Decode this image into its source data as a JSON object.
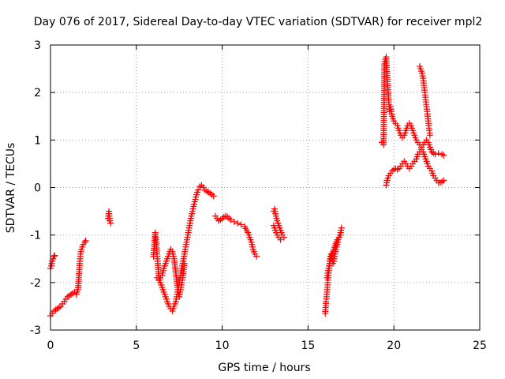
{
  "chart_data": {
    "type": "scatter",
    "title": "Day 076 of 2017, Sidereal Day-to-day VTEC variation (SDTVAR) for receiver mpl2",
    "xlabel": "GPS time / hours",
    "ylabel": "SDTVAR / TECUs",
    "xlim": [
      0,
      25
    ],
    "ylim": [
      -3,
      3
    ],
    "xticks": [
      0,
      5,
      10,
      15,
      20,
      25
    ],
    "yticks": [
      -3,
      -2,
      -1,
      0,
      1,
      2,
      3
    ],
    "xtick_labels": [
      "0",
      "5",
      "10",
      "15",
      "20",
      "25"
    ],
    "ytick_labels": [
      "-3",
      "-2",
      "-1",
      "0",
      "1",
      "2",
      "3"
    ],
    "grid": true,
    "marker": "+",
    "color": "#ff0000",
    "series": [
      {
        "name": "SDTVAR",
        "segments": [
          [
            [
              0.0,
              -2.7
            ],
            [
              0.1,
              -2.65
            ],
            [
              0.2,
              -2.6
            ],
            [
              0.4,
              -2.55
            ],
            [
              0.6,
              -2.5
            ],
            [
              0.8,
              -2.4
            ],
            [
              1.0,
              -2.3
            ],
            [
              1.2,
              -2.25
            ],
            [
              1.4,
              -2.2
            ],
            [
              1.5,
              -2.25
            ],
            [
              1.6,
              -2.15
            ],
            [
              1.65,
              -1.9
            ],
            [
              1.7,
              -1.6
            ],
            [
              1.75,
              -1.4
            ],
            [
              1.8,
              -1.3
            ],
            [
              1.9,
              -1.2
            ],
            [
              2.0,
              -1.15
            ],
            [
              2.05,
              -1.12
            ]
          ],
          [
            [
              0.0,
              -1.7
            ],
            [
              0.05,
              -1.65
            ],
            [
              0.1,
              -1.55
            ],
            [
              0.15,
              -1.5
            ],
            [
              0.2,
              -1.45
            ],
            [
              0.25,
              -1.43
            ]
          ],
          [
            [
              3.35,
              -0.65
            ],
            [
              3.4,
              -0.5
            ],
            [
              3.45,
              -0.7
            ],
            [
              3.5,
              -0.75
            ]
          ],
          [
            [
              6.0,
              -1.45
            ],
            [
              6.05,
              -1.2
            ],
            [
              6.1,
              -0.95
            ],
            [
              6.15,
              -1.1
            ],
            [
              6.2,
              -1.4
            ],
            [
              6.25,
              -1.6
            ],
            [
              6.3,
              -1.85
            ],
            [
              6.4,
              -2.0
            ],
            [
              6.5,
              -2.1
            ],
            [
              6.6,
              -2.2
            ],
            [
              6.7,
              -2.3
            ],
            [
              6.8,
              -2.4
            ],
            [
              6.9,
              -2.5
            ],
            [
              7.0,
              -2.55
            ],
            [
              7.1,
              -2.6
            ],
            [
              7.2,
              -2.5
            ],
            [
              7.3,
              -2.4
            ],
            [
              7.4,
              -2.2
            ],
            [
              7.5,
              -2.0
            ],
            [
              7.6,
              -1.8
            ],
            [
              7.7,
              -1.6
            ],
            [
              7.8,
              -1.4
            ],
            [
              7.9,
              -1.2
            ],
            [
              8.0,
              -1.0
            ],
            [
              8.1,
              -0.8
            ],
            [
              8.2,
              -0.6
            ],
            [
              8.3,
              -0.45
            ],
            [
              8.4,
              -0.3
            ],
            [
              8.5,
              -0.15
            ],
            [
              8.6,
              -0.05
            ],
            [
              8.7,
              0.02
            ],
            [
              8.8,
              0.05
            ],
            [
              8.9,
              0.0
            ],
            [
              9.0,
              -0.05
            ],
            [
              9.1,
              -0.08
            ],
            [
              9.2,
              -0.1
            ],
            [
              9.3,
              -0.12
            ],
            [
              9.4,
              -0.15
            ],
            [
              9.5,
              -0.18
            ]
          ],
          [
            [
              6.2,
              -1.9
            ],
            [
              6.3,
              -1.95
            ],
            [
              6.4,
              -1.9
            ],
            [
              6.5,
              -1.85
            ],
            [
              6.6,
              -1.7
            ],
            [
              6.7,
              -1.6
            ],
            [
              6.8,
              -1.5
            ],
            [
              6.9,
              -1.4
            ],
            [
              7.0,
              -1.3
            ],
            [
              7.1,
              -1.35
            ],
            [
              7.2,
              -1.5
            ],
            [
              7.3,
              -1.8
            ],
            [
              7.4,
              -2.1
            ],
            [
              7.5,
              -2.3
            ],
            [
              7.6,
              -2.1
            ],
            [
              7.7,
              -1.9
            ],
            [
              7.8,
              -1.6
            ]
          ],
          [
            [
              9.6,
              -0.6
            ],
            [
              9.7,
              -0.65
            ],
            [
              9.8,
              -0.7
            ],
            [
              9.9,
              -0.68
            ],
            [
              10.0,
              -0.65
            ],
            [
              10.1,
              -0.62
            ],
            [
              10.2,
              -0.6
            ],
            [
              10.3,
              -0.62
            ],
            [
              10.5,
              -0.68
            ],
            [
              10.7,
              -0.72
            ],
            [
              10.9,
              -0.75
            ],
            [
              11.1,
              -0.78
            ],
            [
              11.3,
              -0.82
            ],
            [
              11.5,
              -0.95
            ],
            [
              11.6,
              -1.05
            ],
            [
              11.7,
              -1.15
            ],
            [
              11.8,
              -1.3
            ],
            [
              11.9,
              -1.4
            ],
            [
              12.0,
              -1.45
            ]
          ],
          [
            [
              13.0,
              -0.5
            ],
            [
              13.05,
              -0.45
            ],
            [
              13.1,
              -0.55
            ],
            [
              13.2,
              -0.7
            ],
            [
              13.3,
              -0.8
            ],
            [
              13.4,
              -0.9
            ],
            [
              13.5,
              -1.0
            ],
            [
              13.6,
              -1.05
            ]
          ],
          [
            [
              13.0,
              -0.8
            ],
            [
              13.1,
              -0.9
            ],
            [
              13.2,
              -1.0
            ],
            [
              13.3,
              -1.05
            ],
            [
              13.4,
              -1.1
            ]
          ],
          [
            [
              16.0,
              -2.65
            ],
            [
              16.05,
              -2.4
            ],
            [
              16.1,
              -2.2
            ],
            [
              16.15,
              -2.0
            ],
            [
              16.2,
              -1.8
            ],
            [
              16.25,
              -1.6
            ],
            [
              16.3,
              -1.45
            ],
            [
              16.35,
              -1.4
            ],
            [
              16.4,
              -1.5
            ],
            [
              16.45,
              -1.6
            ],
            [
              16.5,
              -1.55
            ],
            [
              16.6,
              -1.35
            ],
            [
              16.7,
              -1.2
            ],
            [
              16.8,
              -1.05
            ],
            [
              16.9,
              -0.95
            ],
            [
              16.95,
              -0.85
            ]
          ],
          [
            [
              16.1,
              -1.9
            ],
            [
              16.2,
              -1.7
            ],
            [
              16.3,
              -1.55
            ],
            [
              16.5,
              -1.3
            ],
            [
              16.7,
              -1.1
            ],
            [
              16.9,
              -1.0
            ]
          ],
          [
            [
              19.3,
              0.95
            ],
            [
              19.4,
              0.9
            ],
            [
              19.45,
              2.6
            ],
            [
              19.5,
              2.7
            ],
            [
              19.55,
              2.75
            ],
            [
              19.6,
              2.4
            ],
            [
              19.65,
              2.1
            ],
            [
              19.7,
              1.8
            ],
            [
              19.75,
              1.6
            ],
            [
              19.8,
              1.7
            ],
            [
              19.9,
              1.5
            ],
            [
              20.0,
              1.4
            ],
            [
              20.1,
              1.35
            ],
            [
              20.2,
              1.3
            ],
            [
              20.3,
              1.2
            ],
            [
              20.4,
              1.1
            ],
            [
              20.5,
              1.05
            ],
            [
              20.6,
              1.1
            ],
            [
              20.7,
              1.2
            ],
            [
              20.8,
              1.3
            ],
            [
              20.9,
              1.35
            ],
            [
              21.0,
              1.3
            ],
            [
              21.1,
              1.2
            ],
            [
              21.2,
              1.1
            ],
            [
              21.3,
              1.0
            ],
            [
              21.4,
              0.95
            ],
            [
              21.5,
              0.9
            ],
            [
              21.6,
              0.85
            ],
            [
              21.7,
              0.9
            ],
            [
              21.8,
              0.95
            ],
            [
              21.9,
              1.0
            ],
            [
              22.0,
              0.95
            ],
            [
              22.1,
              0.85
            ],
            [
              22.2,
              0.75
            ],
            [
              22.4,
              0.7
            ],
            [
              22.6,
              0.72
            ],
            [
              22.8,
              0.7
            ],
            [
              22.9,
              0.68
            ]
          ],
          [
            [
              19.55,
              0.05
            ],
            [
              19.6,
              0.15
            ],
            [
              19.7,
              0.25
            ],
            [
              19.8,
              0.3
            ],
            [
              19.9,
              0.35
            ],
            [
              20.0,
              0.38
            ],
            [
              20.1,
              0.4
            ],
            [
              20.2,
              0.38
            ],
            [
              20.3,
              0.4
            ],
            [
              20.4,
              0.45
            ],
            [
              20.5,
              0.5
            ],
            [
              20.6,
              0.55
            ],
            [
              20.7,
              0.5
            ],
            [
              20.8,
              0.45
            ],
            [
              20.9,
              0.4
            ],
            [
              21.0,
              0.45
            ],
            [
              21.1,
              0.5
            ],
            [
              21.2,
              0.55
            ],
            [
              21.3,
              0.6
            ],
            [
              21.4,
              0.7
            ],
            [
              21.5,
              0.75
            ],
            [
              21.6,
              0.8
            ],
            [
              21.7,
              0.75
            ],
            [
              21.8,
              0.65
            ],
            [
              21.9,
              0.55
            ],
            [
              22.0,
              0.45
            ],
            [
              22.1,
              0.4
            ],
            [
              22.2,
              0.35
            ],
            [
              22.3,
              0.25
            ],
            [
              22.4,
              0.2
            ],
            [
              22.5,
              0.15
            ],
            [
              22.6,
              0.1
            ],
            [
              22.7,
              0.1
            ],
            [
              22.8,
              0.12
            ],
            [
              22.9,
              0.15
            ]
          ],
          [
            [
              21.5,
              2.55
            ],
            [
              21.55,
              2.5
            ],
            [
              21.6,
              2.45
            ],
            [
              21.65,
              2.4
            ],
            [
              21.7,
              2.3
            ],
            [
              21.75,
              2.15
            ],
            [
              21.8,
              2.0
            ],
            [
              21.85,
              1.85
            ],
            [
              21.9,
              1.7
            ],
            [
              21.95,
              1.55
            ],
            [
              22.0,
              1.4
            ],
            [
              22.05,
              1.25
            ],
            [
              22.1,
              1.1
            ]
          ]
        ]
      }
    ]
  }
}
